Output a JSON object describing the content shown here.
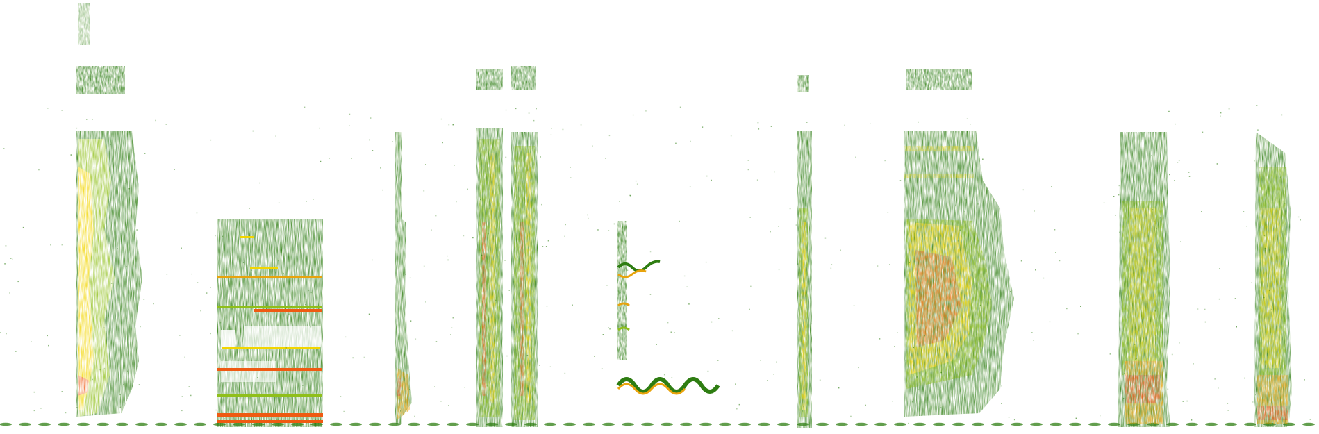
{
  "image": {
    "kind": "spectrogram",
    "background": "#ffffff",
    "palette": {
      "low": "#2e7d12",
      "mid": "#8fbf1a",
      "high": "#f2d500",
      "peak": "#ef5a12"
    },
    "baseline_style": "dashed green noise floor"
  },
  "segments": [
    {
      "name": "seg-1",
      "shape": "broadband-burst",
      "intensity": 0.62
    },
    {
      "name": "seg-2",
      "shape": "block-with-harmonic-lines",
      "intensity": 0.45
    },
    {
      "name": "seg-3",
      "shape": "thin-pulse",
      "intensity": 0.55
    },
    {
      "name": "seg-4",
      "shape": "double-vertical-band",
      "intensity": 0.58
    },
    {
      "name": "seg-5",
      "shape": "wavy-tones",
      "intensity": 0.5
    },
    {
      "name": "seg-6",
      "shape": "thin-pulse",
      "intensity": 0.55
    },
    {
      "name": "seg-7",
      "shape": "broadband-cloud",
      "intensity": 0.72
    },
    {
      "name": "seg-8",
      "shape": "dense-band",
      "intensity": 0.6
    },
    {
      "name": "seg-9",
      "shape": "dense-band",
      "intensity": 0.65
    }
  ]
}
